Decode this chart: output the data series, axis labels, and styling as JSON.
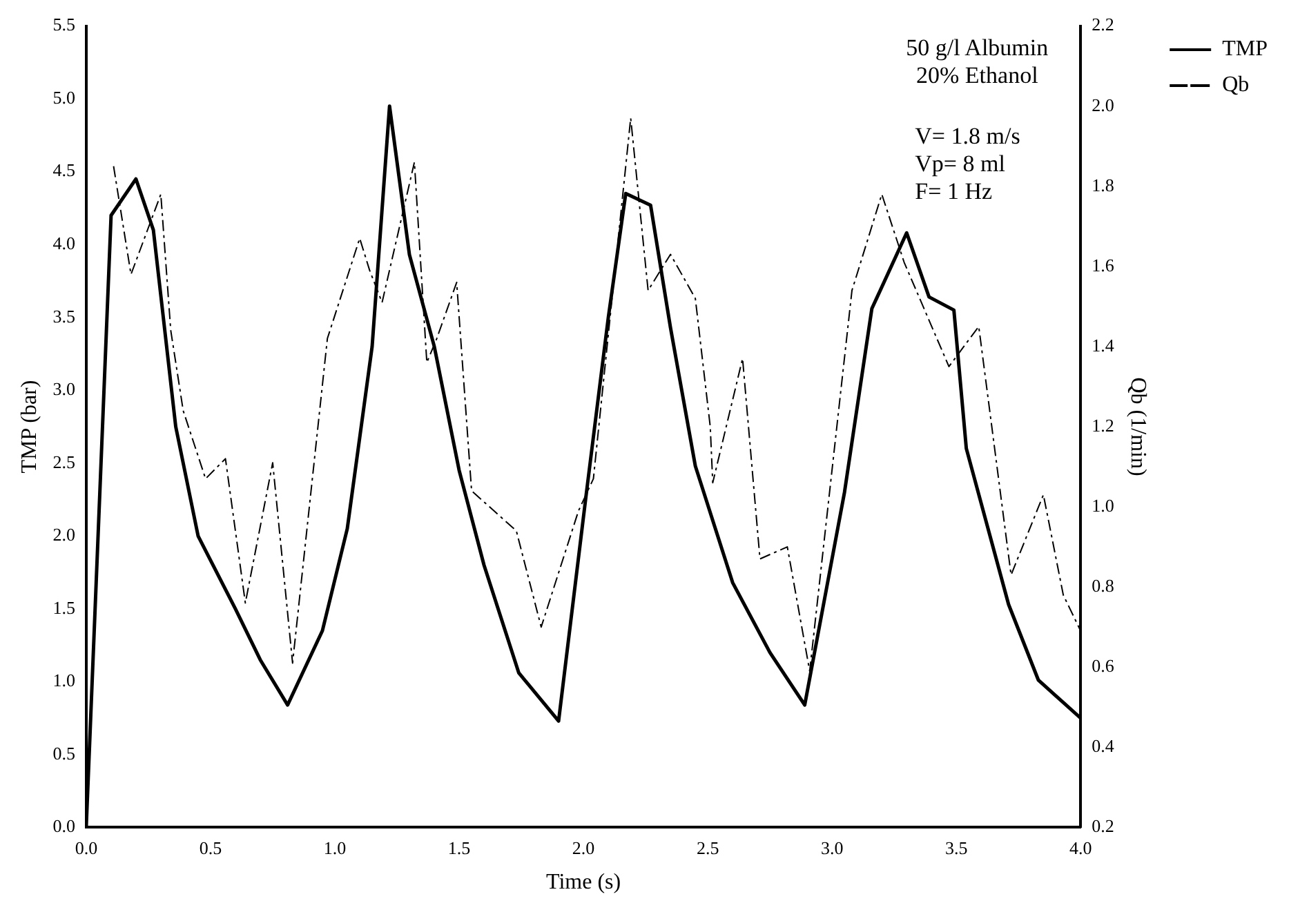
{
  "chart_data": {
    "type": "line",
    "xlabel": "Time (s)",
    "ylabel": "TMP (bar)",
    "y2label": "Qb (1/min)",
    "annotations": [
      "50 g/l Albumin",
      "20% Ethanol",
      "V= 1.8 m/s",
      "Vp= 8 ml",
      "F= 1 Hz"
    ],
    "xlim": [
      0,
      4
    ],
    "xticks": [
      {
        "value": 0,
        "label": "0.0"
      },
      {
        "value": 0.5,
        "label": "0.5"
      },
      {
        "value": 1,
        "label": "1.0"
      },
      {
        "value": 1.5,
        "label": "1.5"
      },
      {
        "value": 2,
        "label": "2.0"
      },
      {
        "value": 2.5,
        "label": "2.5"
      },
      {
        "value": 3,
        "label": "3.0"
      },
      {
        "value": 3.5,
        "label": "3.5"
      },
      {
        "value": 4,
        "label": "4.0"
      }
    ],
    "ylim": [
      0,
      5.5
    ],
    "yticks": [
      {
        "value": 0,
        "label": "0.0"
      },
      {
        "value": 0.5,
        "label": "0.5"
      },
      {
        "value": 1,
        "label": "1.0"
      },
      {
        "value": 1.5,
        "label": "1.5"
      },
      {
        "value": 2,
        "label": "2.0"
      },
      {
        "value": 2.5,
        "label": "2.5"
      },
      {
        "value": 3,
        "label": "3.0"
      },
      {
        "value": 3.5,
        "label": "3.5"
      },
      {
        "value": 4,
        "label": "4.0"
      },
      {
        "value": 4.5,
        "label": "4.5"
      },
      {
        "value": 5,
        "label": "5.0"
      },
      {
        "value": 5.5,
        "label": "5.5"
      }
    ],
    "y2lim": [
      0.2,
      2.2
    ],
    "y2ticks": [
      0.2,
      0.4,
      0.6,
      0.8,
      {
        "value": 1,
        "label": "1.0"
      },
      1.2,
      1.4,
      1.6,
      1.8,
      {
        "value": 2,
        "label": "2.0"
      },
      2.2
    ],
    "grid": false,
    "legend": "right",
    "marker": "none",
    "series": [
      {
        "name": "TMP",
        "color": "#000000",
        "line_style": "solid",
        "x": [
          0,
          0.1,
          0.2,
          0.27,
          0.33,
          0.36,
          0.45,
          0.6,
          0.7,
          0.81,
          0.95,
          1.05,
          1.15,
          1.22,
          1.3,
          1.4,
          1.5,
          1.6,
          1.74,
          1.9,
          2.01,
          2.1,
          2.17,
          2.27,
          2.35,
          2.45,
          2.6,
          2.75,
          2.89,
          3.05,
          3.16,
          3.3,
          3.39,
          3.49,
          3.54,
          3.71,
          3.83,
          4.0
        ],
        "values": [
          0,
          4.2,
          4.45,
          4.1,
          3.2,
          2.75,
          2.0,
          1.5,
          1.15,
          0.84,
          1.35,
          2.05,
          3.3,
          4.95,
          3.93,
          3.3,
          2.45,
          1.8,
          1.06,
          0.73,
          2.27,
          3.5,
          4.35,
          4.27,
          3.43,
          2.48,
          1.68,
          1.2,
          0.84,
          2.3,
          3.56,
          4.08,
          3.64,
          3.55,
          2.6,
          1.53,
          1.01,
          0.75
        ]
      },
      {
        "name": "Qb",
        "color": "#000000",
        "line_style": "dashed",
        "axis": "y2",
        "x": [
          0.11,
          0.18,
          0.3,
          0.34,
          0.39,
          0.48,
          0.56,
          0.64,
          0.75,
          0.83,
          0.97,
          1.1,
          1.14,
          1.19,
          1.32,
          1.37,
          1.41,
          1.49,
          1.55,
          1.73,
          1.83,
          1.98,
          2.04,
          2.19,
          2.26,
          2.35,
          2.45,
          2.51,
          2.52,
          2.64,
          2.71,
          2.82,
          2.91,
          3.08,
          3.2,
          3.29,
          3.47,
          3.59,
          3.72,
          3.85,
          3.93,
          4.0
        ],
        "values": [
          1.85,
          1.58,
          1.78,
          1.44,
          1.24,
          1.07,
          1.12,
          0.76,
          1.11,
          0.61,
          1.42,
          1.67,
          1.59,
          1.51,
          1.86,
          1.36,
          1.42,
          1.56,
          1.04,
          0.94,
          0.7,
          0.99,
          1.07,
          1.97,
          1.54,
          1.63,
          1.52,
          1.2,
          1.06,
          1.37,
          0.87,
          0.9,
          0.59,
          1.54,
          1.78,
          1.61,
          1.35,
          1.45,
          0.83,
          1.03,
          0.78,
          0.69
        ]
      }
    ]
  }
}
